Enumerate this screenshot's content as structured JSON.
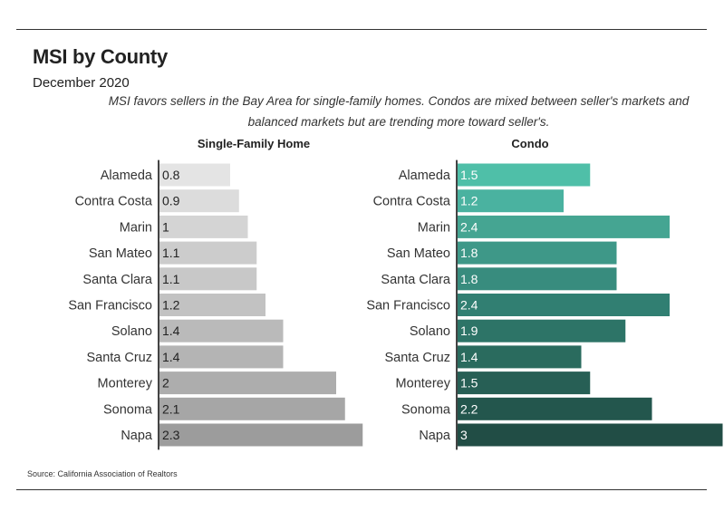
{
  "header": {
    "title": "MSI by County",
    "subtitle": "December 2020",
    "description": "MSI favors sellers in the Bay Area for single-family homes. Condos are mixed between seller's markets and balanced markets but are trending more toward seller's."
  },
  "footer": {
    "source": "Source:  California Association of Realtors"
  },
  "chart_data": [
    {
      "type": "bar",
      "orientation": "horizontal",
      "title": "Single-Family Home",
      "categories": [
        "Alameda",
        "Contra Costa",
        "Marin",
        "San Mateo",
        "Santa Clara",
        "San Francisco",
        "Solano",
        "Santa Cruz",
        "Monterey",
        "Sonoma",
        "Napa"
      ],
      "values": [
        0.8,
        0.9,
        1,
        1.1,
        1.1,
        1.2,
        1.4,
        1.4,
        2,
        2.1,
        2.3
      ],
      "value_labels": [
        "0.8",
        "0.9",
        "1",
        "1.1",
        "1.1",
        "1.2",
        "1.4",
        "1.4",
        "2",
        "2.1",
        "2.3"
      ],
      "xlim": [
        0,
        3
      ],
      "colors": [
        "#e4e4e4",
        "#dcdcdc",
        "#d4d4d4",
        "#cccccc",
        "#c8c8c8",
        "#c2c2c2",
        "#bababa",
        "#b4b4b4",
        "#adadad",
        "#a6a6a6",
        "#9c9c9c"
      ],
      "label_color": "#222222"
    },
    {
      "type": "bar",
      "orientation": "horizontal",
      "title": "Condo",
      "categories": [
        "Alameda",
        "Contra Costa",
        "Marin",
        "San Mateo",
        "Santa Clara",
        "San Francisco",
        "Solano",
        "Santa Cruz",
        "Monterey",
        "Sonoma",
        "Napa"
      ],
      "values": [
        1.5,
        1.2,
        2.4,
        1.8,
        1.8,
        2.4,
        1.9,
        1.4,
        1.5,
        2.2,
        3
      ],
      "value_labels": [
        "1.5",
        "1.2",
        "2.4",
        "1.8",
        "1.8",
        "2.4",
        "1.9",
        "1.4",
        "1.5",
        "2.2",
        "3"
      ],
      "xlim": [
        0,
        3
      ],
      "colors": [
        "#4fbfa8",
        "#4ab2a0",
        "#45a592",
        "#3e9888",
        "#388c7e",
        "#317f72",
        "#2d7467",
        "#2a6b5e",
        "#275f55",
        "#23564d",
        "#214d45"
      ],
      "label_color": "#ffffff"
    }
  ]
}
